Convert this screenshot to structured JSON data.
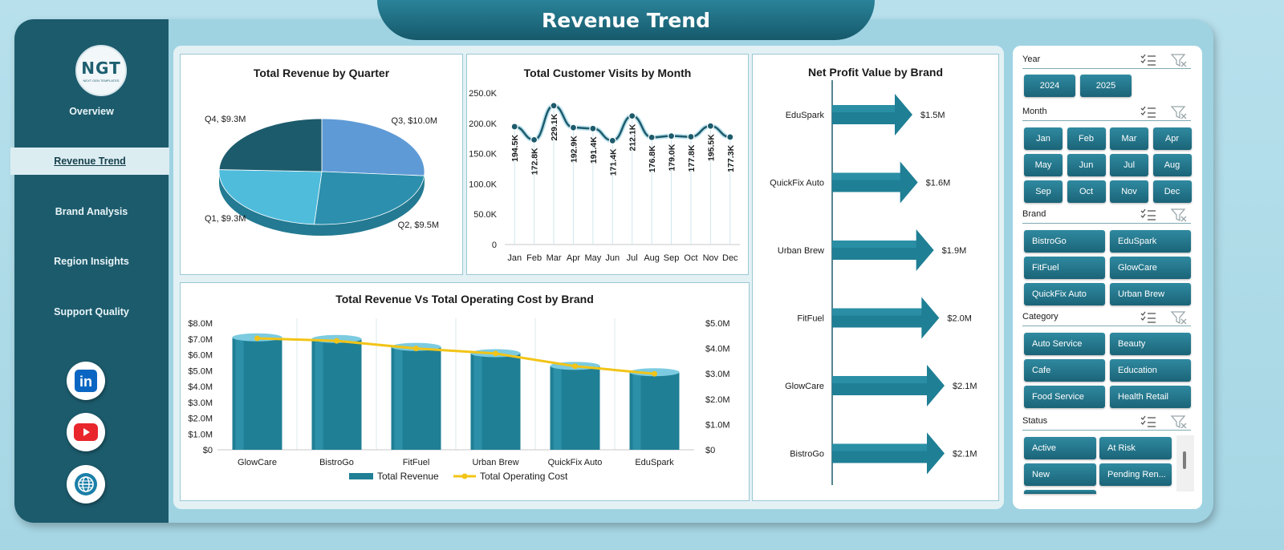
{
  "header": {
    "title": "Revenue Trend"
  },
  "logo": {
    "text": "NGT",
    "subtext": "NEXT GEN TEMPLATES"
  },
  "sidebar": {
    "items": [
      {
        "label": "Overview",
        "active": false
      },
      {
        "label": "Revenue Trend",
        "active": true
      },
      {
        "label": "Brand Analysis",
        "active": false
      },
      {
        "label": "Region Insights",
        "active": false
      },
      {
        "label": "Support Quality",
        "active": false
      }
    ],
    "social": [
      {
        "icon": "linkedin-icon",
        "text": "in",
        "color": "#0a66c2"
      },
      {
        "icon": "youtube-icon",
        "color": "#e8262b"
      },
      {
        "icon": "globe-icon",
        "color": "#1b7fa8"
      }
    ]
  },
  "chart_data": [
    {
      "type": "pie",
      "title": "Total Revenue by Quarter",
      "labels": [
        "Q1",
        "Q2",
        "Q3",
        "Q4"
      ],
      "values": [
        9.3,
        9.5,
        10.0,
        9.3
      ],
      "data_labels": [
        "Q1, $9.3M",
        "Q2, $9.5M",
        "Q3, $10.0M",
        "Q4, $9.3M"
      ],
      "colors": [
        "#4fbcdc",
        "#2b8fad",
        "#5e9ad6",
        "#1c5b6c"
      ]
    },
    {
      "type": "line",
      "title": "Total Customer Visits by Month",
      "categories": [
        "Jan",
        "Feb",
        "Mar",
        "Apr",
        "May",
        "Jun",
        "Jul",
        "Aug",
        "Sep",
        "Oct",
        "Nov",
        "Dec"
      ],
      "values": [
        194500,
        172800,
        229100,
        192900,
        191400,
        171400,
        212100,
        176800,
        179000,
        177800,
        195500,
        177300
      ],
      "data_labels": [
        "194.5K",
        "172.8K",
        "229.1K",
        "192.9K",
        "191.4K",
        "171.4K",
        "212.1K",
        "176.8K",
        "179.0K",
        "177.8K",
        "195.5K",
        "177.3K"
      ],
      "yticks": [
        "0",
        "50.0K",
        "100.0K",
        "150.0K",
        "200.0K",
        "250.0K"
      ],
      "ylim": [
        0,
        250000
      ],
      "color": "#1c5b6c"
    },
    {
      "type": "bar",
      "orientation": "horizontal",
      "title": "Net Profit Value by Brand",
      "categories": [
        "EduSpark",
        "QuickFix Auto",
        "Urban Brew",
        "FitFuel",
        "GlowCare",
        "BistroGo"
      ],
      "values": [
        1.5,
        1.6,
        1.9,
        2.0,
        2.1,
        2.1
      ],
      "data_labels": [
        "$1.5M",
        "$1.6M",
        "$1.9M",
        "$2.0M",
        "$2.1M",
        "$2.1M"
      ],
      "color": "#1f7f95"
    },
    {
      "type": "bar",
      "title": "Total Revenue Vs Total Operating Cost by Brand",
      "categories": [
        "GlowCare",
        "BistroGo",
        "FitFuel",
        "Urban Brew",
        "QuickFix Auto",
        "EduSpark"
      ],
      "series": [
        {
          "name": "Total Revenue",
          "type": "bar",
          "axis": "left",
          "values": [
            7.1,
            7.0,
            6.5,
            6.1,
            5.3,
            4.9
          ],
          "color": "#1f7f95"
        },
        {
          "name": "Total Operating Cost",
          "type": "line",
          "axis": "right",
          "values": [
            4.4,
            4.3,
            4.0,
            3.8,
            3.3,
            3.0
          ],
          "color": "#f2c417"
        }
      ],
      "yticks_left": [
        "$0",
        "$1.0M",
        "$2.0M",
        "$3.0M",
        "$4.0M",
        "$5.0M",
        "$6.0M",
        "$7.0M",
        "$8.0M"
      ],
      "yticks_right": [
        "$0",
        "$1.0M",
        "$2.0M",
        "$3.0M",
        "$4.0M",
        "$5.0M"
      ],
      "ylim_left": [
        0,
        8
      ],
      "ylim_right": [
        0,
        5
      ],
      "legend": "bottom"
    }
  ],
  "filters": {
    "year": {
      "label": "Year",
      "items": [
        "2024",
        "2025"
      ]
    },
    "month": {
      "label": "Month",
      "items": [
        "Jan",
        "Feb",
        "Mar",
        "Apr",
        "May",
        "Jun",
        "Jul",
        "Aug",
        "Sep",
        "Oct",
        "Nov",
        "Dec"
      ]
    },
    "brand": {
      "label": "Brand",
      "items": [
        "BistroGo",
        "EduSpark",
        "FitFuel",
        "GlowCare",
        "QuickFix Auto",
        "Urban Brew"
      ]
    },
    "category": {
      "label": "Category",
      "items": [
        "Auto Service",
        "Beauty",
        "Cafe",
        "Education",
        "Food Service",
        "Health Retail"
      ]
    },
    "status": {
      "label": "Status",
      "items": [
        "Active",
        "At Risk",
        "New",
        "Pending Ren..."
      ]
    }
  }
}
